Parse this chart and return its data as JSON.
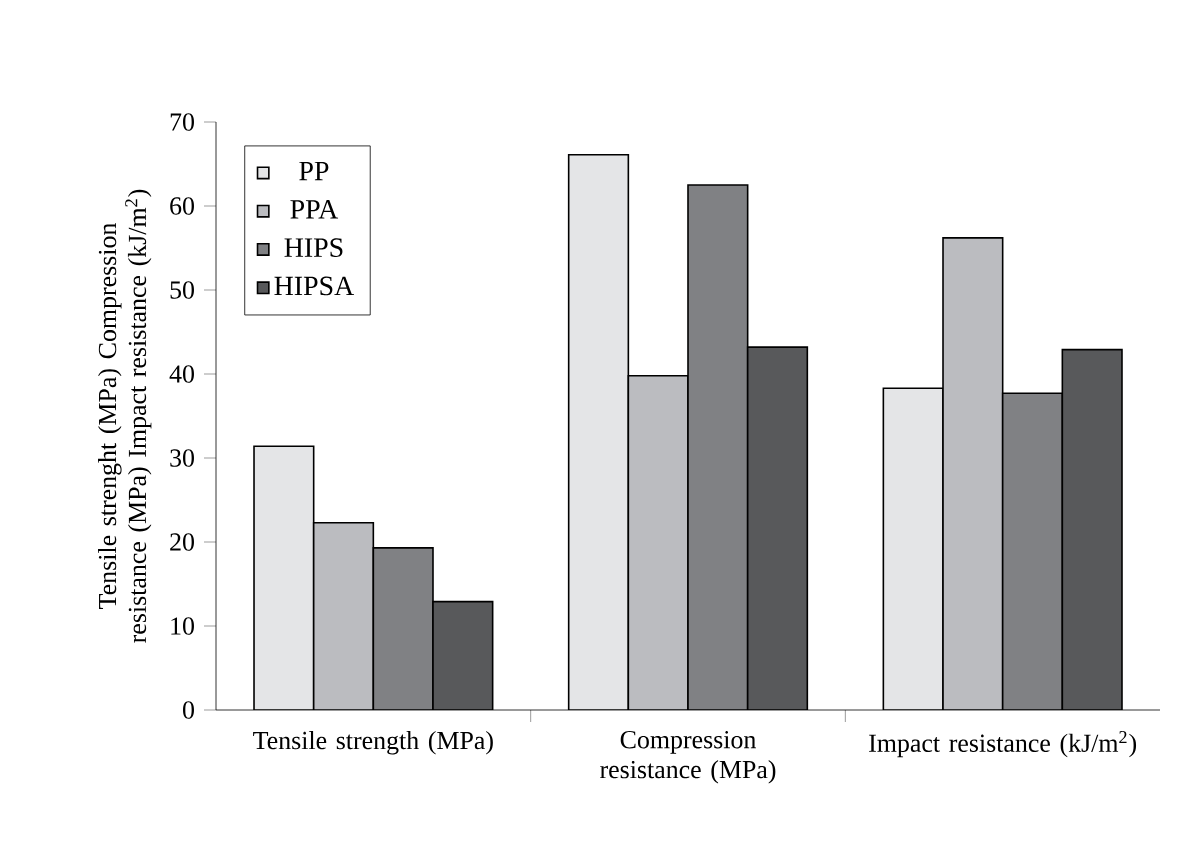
{
  "chart_data": {
    "type": "bar",
    "ylabel": "Tensile strenght (MPa) Compression resistance (MPa) Impact resistance (kJ/m$^{2}$)",
    "categories": [
      "Tensile strength (MPa)",
      "Compression resistance (MPa)",
      "Impact resistance (kJ/m$^{2}$)"
    ],
    "series": [
      {
        "name": "PP",
        "color": "#e4e5e7",
        "values": [
          31.4,
          66.1,
          38.3
        ]
      },
      {
        "name": "PPA",
        "color": "#bbbcc0",
        "values": [
          22.3,
          39.8,
          56.2
        ]
      },
      {
        "name": "HIPS",
        "color": "#808184",
        "values": [
          19.3,
          62.5,
          37.7
        ]
      },
      {
        "name": "HIPSA",
        "color": "#58595b",
        "values": [
          12.9,
          43.2,
          42.9
        ]
      }
    ],
    "ylim": [
      0,
      70
    ],
    "yticks": [
      0,
      10,
      20,
      30,
      40,
      50,
      60,
      70
    ],
    "legend": "top left",
    "grid": false
  }
}
